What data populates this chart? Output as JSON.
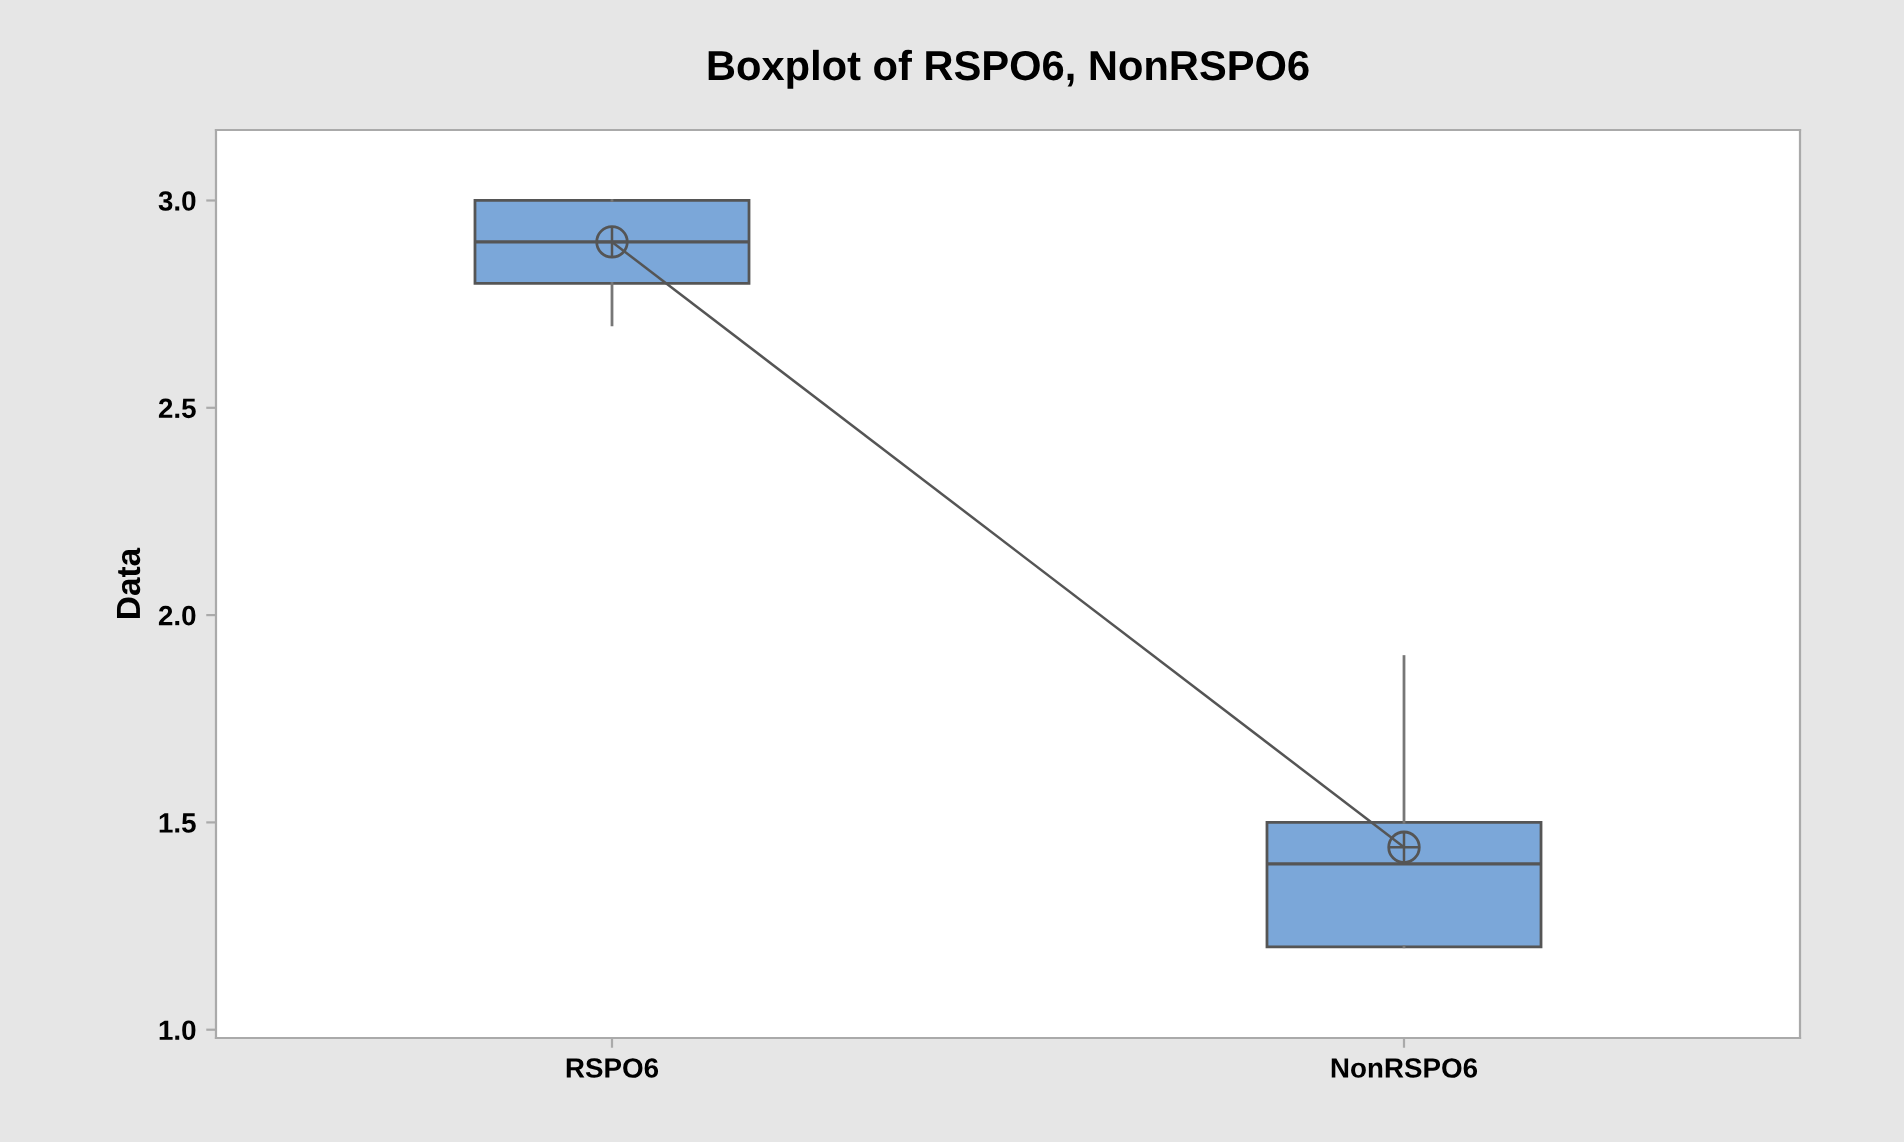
{
  "chart_data": {
    "type": "box",
    "title": "Boxplot of RSPO6, NonRSPO6",
    "ylabel": "Data",
    "categories": [
      "RSPO6",
      "NonRSPO6"
    ],
    "boxes": [
      {
        "low": 2.7,
        "q1": 2.8,
        "median": 2.9,
        "q3": 3.0,
        "high": 3.0
      },
      {
        "low": 1.2,
        "q1": 1.2,
        "median": 1.4,
        "q3": 1.5,
        "high": 1.9
      }
    ],
    "color": "#7ba7d9",
    "series": [
      {
        "type": "line",
        "color": "#555555",
        "marker": "circle",
        "values": [
          2.9,
          1.44
        ]
      }
    ],
    "ylim": [
      0.98,
      3.17
    ],
    "yticks": [
      {
        "value": 1.0,
        "label": "1.0"
      },
      1.5,
      {
        "value": 2.0,
        "label": "2.0"
      },
      2.5,
      {
        "value": 3.0,
        "label": "3.0"
      }
    ],
    "grid": false,
    "legend": false
  }
}
